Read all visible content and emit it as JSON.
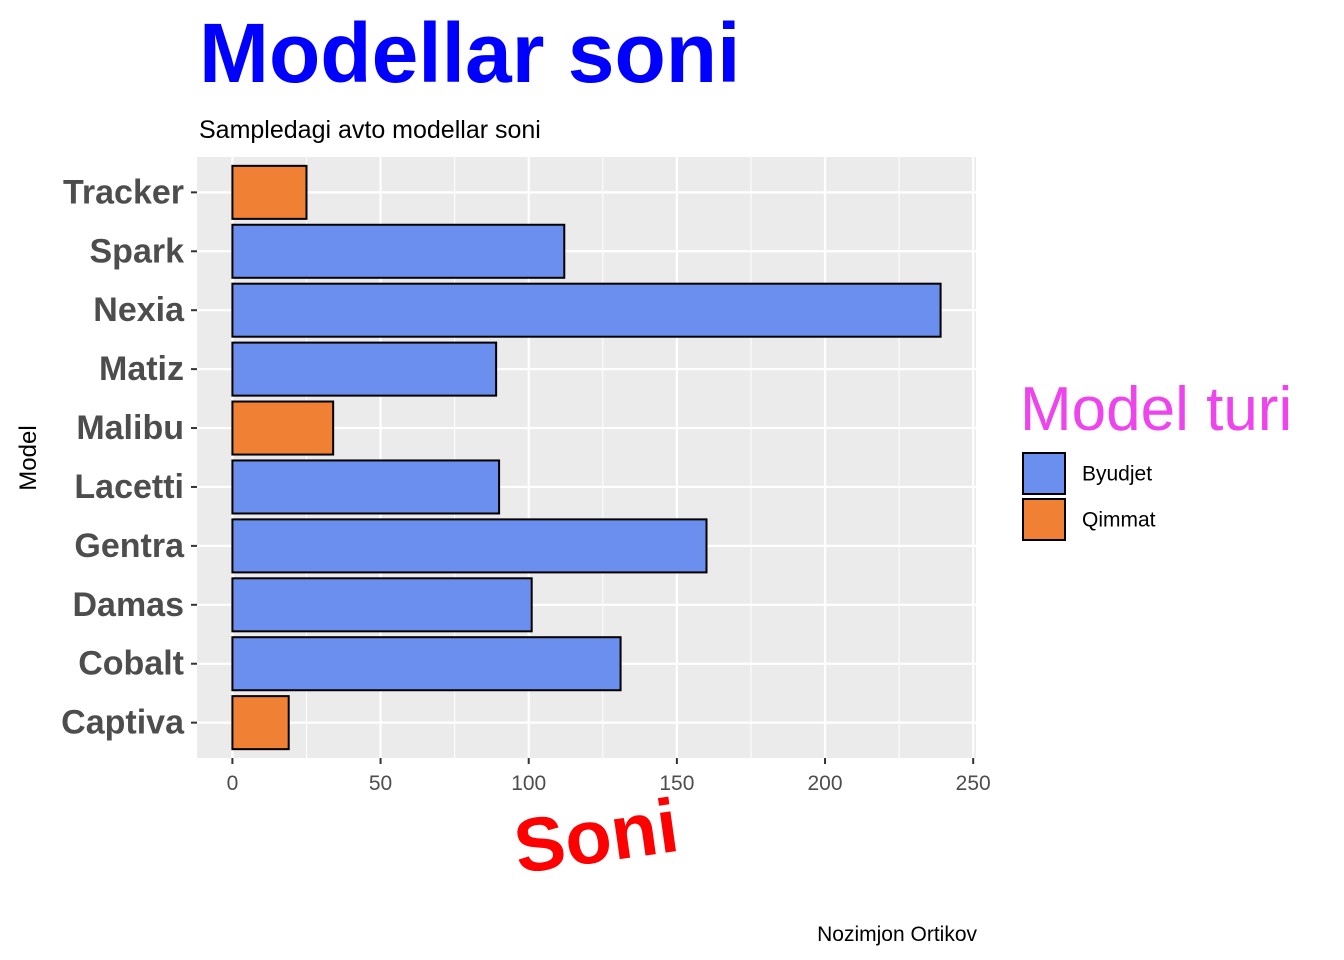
{
  "chart_data": {
    "type": "bar",
    "orientation": "horizontal",
    "title": "Modellar soni",
    "subtitle": "Sampledagi avto modellar soni",
    "xlabel": "Soni",
    "ylabel": "Model",
    "caption": "Nozimjon Ortikov",
    "categories": [
      "Captiva",
      "Cobalt",
      "Damas",
      "Gentra",
      "Lacetti",
      "Malibu",
      "Matiz",
      "Nexia",
      "Spark",
      "Tracker"
    ],
    "values": [
      19,
      131,
      101,
      160,
      90,
      34,
      89,
      239,
      112,
      25
    ],
    "groups": [
      "Qimmat",
      "Byudjet",
      "Byudjet",
      "Byudjet",
      "Byudjet",
      "Qimmat",
      "Byudjet",
      "Byudjet",
      "Byudjet",
      "Qimmat"
    ],
    "xlim": [
      -11.95,
      250.95
    ],
    "xticks": [
      "0",
      "50",
      "100",
      "150",
      "200",
      "250"
    ],
    "grid": true,
    "legend": {
      "title": "Model turi",
      "placement": "right",
      "entries": [
        {
          "label": "Byudjet",
          "color": "#6A8FEF"
        },
        {
          "label": "Qimmat",
          "color": "#F08033"
        }
      ]
    },
    "colors": {
      "title": "#0000FF",
      "xlabel": "#FF0000",
      "legend_title": "#EE44EE",
      "panel_bg": "#EBEBEB",
      "grid": "#FFFFFF",
      "tick_text": "#4D4D4D",
      "bar_outline": "#000000"
    }
  }
}
